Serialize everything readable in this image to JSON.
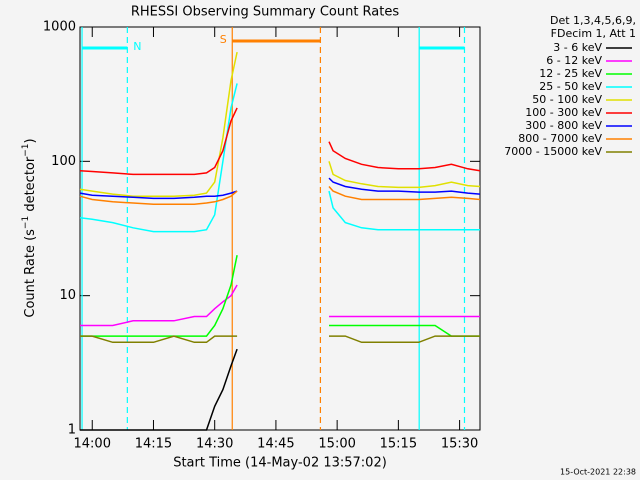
{
  "chart_data": {
    "type": "line",
    "title": "RHESSI Observing Summary Count Rates",
    "xlabel": "Start Time (14-May-02 13:57:02)",
    "ylabel_parts": [
      "Count Rate (s",
      "−1",
      " detector",
      "−1",
      ")"
    ],
    "legend_title": [
      "Det 1,3,4,5,6,9,",
      "FDecim 1, Att 1"
    ],
    "footer": "15-Oct-2021 22:38",
    "log_y": true,
    "xlim": [
      -3,
      95
    ],
    "ylim": [
      1,
      1000
    ],
    "xticks": [
      {
        "value": 0,
        "label": "14:00"
      },
      {
        "value": 15,
        "label": "14:15"
      },
      {
        "value": 30,
        "label": "14:30"
      },
      {
        "value": 45,
        "label": "14:45"
      },
      {
        "value": 60,
        "label": "15:00"
      },
      {
        "value": 75,
        "label": "15:15"
      },
      {
        "value": 90,
        "label": "15:30"
      }
    ],
    "yticks": [
      1,
      10,
      100,
      1000
    ],
    "x": [
      -3,
      0,
      5,
      10,
      15,
      20,
      25,
      28,
      30,
      32,
      34,
      35.5,
      36,
      58,
      59,
      62,
      66,
      70,
      75,
      80,
      84,
      88,
      92,
      95
    ],
    "series": [
      {
        "name": "3 - 6 keV",
        "color": "#000000",
        "values": [
          1,
          1,
          1,
          1,
          1,
          1,
          1,
          1,
          1.5,
          2,
          3,
          4,
          null,
          null,
          null,
          null,
          null,
          null,
          null,
          null,
          null,
          null,
          null,
          null
        ]
      },
      {
        "name": "6 - 12 keV",
        "color": "#ff00ff",
        "values": [
          6,
          6,
          6,
          6.5,
          6.5,
          6.5,
          7,
          7,
          8,
          9,
          10,
          12,
          null,
          7,
          7,
          7,
          7,
          7,
          7,
          7,
          7,
          7,
          7,
          7
        ]
      },
      {
        "name": "12 - 25 keV",
        "color": "#00ff00",
        "values": [
          5,
          5,
          5,
          5,
          5,
          5,
          5,
          5,
          6,
          8,
          12,
          20,
          null,
          6,
          6,
          6,
          6,
          6,
          6,
          6,
          6,
          5,
          5,
          5
        ]
      },
      {
        "name": "25 - 50 keV",
        "color": "#00ffff",
        "values": [
          38,
          37,
          35,
          32,
          30,
          30,
          30,
          31,
          40,
          100,
          250,
          380,
          null,
          60,
          45,
          35,
          32,
          31,
          31,
          31,
          31,
          31,
          31,
          31
        ]
      },
      {
        "name": "50 - 100 keV",
        "color": "#e0e000",
        "values": [
          62,
          60,
          57,
          55,
          55,
          55,
          56,
          58,
          70,
          150,
          400,
          650,
          null,
          100,
          80,
          72,
          68,
          65,
          64,
          64,
          66,
          70,
          66,
          65
        ]
      },
      {
        "name": "100 - 300 keV",
        "color": "#ff0000",
        "values": [
          85,
          84,
          82,
          80,
          80,
          80,
          80,
          82,
          90,
          120,
          200,
          250,
          null,
          140,
          120,
          105,
          95,
          90,
          88,
          88,
          90,
          95,
          88,
          85
        ]
      },
      {
        "name": "300 - 800 keV",
        "color": "#0000ff",
        "values": [
          58,
          56,
          55,
          54,
          53,
          53,
          54,
          55,
          55,
          56,
          58,
          60,
          null,
          75,
          70,
          65,
          62,
          60,
          60,
          59,
          59,
          60,
          58,
          57
        ]
      },
      {
        "name": "800 - 7000 keV",
        "color": "#ff8000",
        "values": [
          55,
          52,
          50,
          49,
          48,
          48,
          48,
          49,
          50,
          52,
          55,
          60,
          null,
          65,
          60,
          55,
          52,
          52,
          52,
          52,
          53,
          54,
          53,
          52
        ]
      },
      {
        "name": "7000 - 15000 keV",
        "color": "#808000",
        "values": [
          5,
          5,
          4.5,
          4.5,
          4.5,
          5,
          4.5,
          4.5,
          5,
          5,
          5,
          5,
          null,
          5,
          5,
          5,
          4.5,
          4.5,
          4.5,
          4.5,
          5,
          5,
          5,
          5
        ]
      }
    ],
    "regions": [
      {
        "label": "N",
        "color": "#00ffff",
        "start": -2.5,
        "end": 8.6
      },
      {
        "label": "S",
        "color": "#ff8000",
        "start": 34.3,
        "end": 55.9
      },
      {
        "color": "#00ffff",
        "start": 80.1,
        "end": 91.2
      }
    ]
  }
}
